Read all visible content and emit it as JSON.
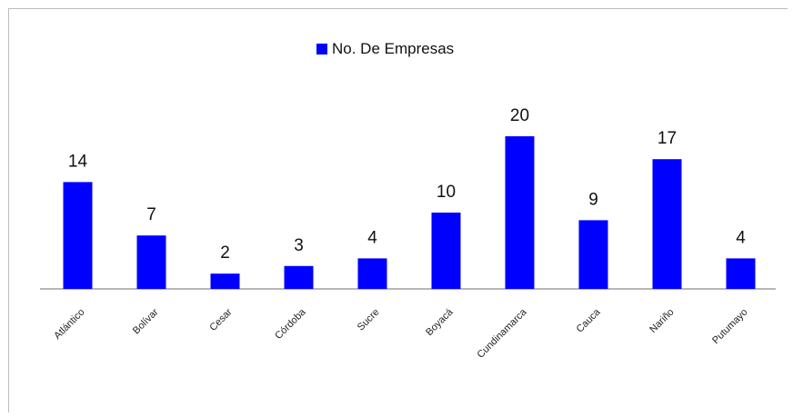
{
  "chart_data": {
    "type": "bar",
    "categories": [
      "Atlántico",
      "Bolívar",
      "Cesar",
      "Córdoba",
      "Sucre",
      "Boyacá",
      "Cundinamarca",
      "Cauca",
      "Nariño",
      "Putumayo"
    ],
    "series": [
      {
        "name": "No. De Empresas",
        "values": [
          14,
          7,
          2,
          3,
          4,
          10,
          20,
          9,
          17,
          4
        ],
        "color": "#0000ff"
      }
    ],
    "data_labels": [
      "14",
      "7",
      "2",
      "3",
      "4",
      "10",
      "20",
      "9",
      "17",
      "4"
    ],
    "legend_position": "top-center",
    "grid": false,
    "ylim": [
      0,
      20
    ],
    "xlabel": "",
    "ylabel": ""
  }
}
